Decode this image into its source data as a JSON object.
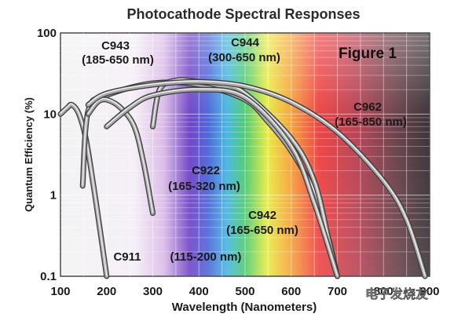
{
  "chart_data": {
    "type": "line",
    "title": "Photocathode Spectral Responses",
    "figure_label": "Figure 1",
    "xlabel": "Wavelength (Nanometers)",
    "ylabel": "Quantum Efficiency (%)",
    "xlim": [
      100,
      900
    ],
    "ylim": [
      0.1,
      100
    ],
    "yscale": "log",
    "grid": true,
    "x_ticks": [
      "100",
      "200",
      "300",
      "400",
      "500",
      "600",
      "700",
      "800",
      "900"
    ],
    "y_ticks": [
      "0.1",
      "1",
      "10",
      "100"
    ],
    "series": [
      {
        "name": "C911",
        "range": "(115-200 nm)",
        "x": [
          100,
          115,
          125,
          140,
          155,
          170,
          185,
          200
        ],
        "y": [
          10,
          12,
          13,
          10,
          5,
          1.5,
          0.4,
          0.1
        ]
      },
      {
        "name": "C943",
        "range": "(185-650 nm)",
        "x": [
          148,
          160,
          200,
          300,
          400,
          500,
          550,
          600,
          650,
          680,
          700
        ],
        "y": [
          1.3,
          11,
          17,
          24,
          23,
          15,
          8,
          3.5,
          1.1,
          0.3,
          0.1
        ]
      },
      {
        "name": "C922",
        "range": "(165-320 nm)",
        "x": [
          160,
          180,
          200,
          230,
          260,
          280,
          300
        ],
        "y": [
          10,
          14,
          15,
          12,
          7,
          2.5,
          0.6
        ]
      },
      {
        "name": "C944",
        "range": "(300-650 nm)",
        "x": [
          300,
          315,
          350,
          400,
          450,
          500,
          600,
          650,
          680,
          700
        ],
        "y": [
          7,
          20,
          26,
          25,
          22,
          18,
          5,
          1.5,
          0.3,
          0.1
        ]
      },
      {
        "name": "C942",
        "range": "(165-650 nm)",
        "x": [
          200,
          250,
          300,
          400,
          500,
          600,
          650,
          700
        ],
        "y": [
          7,
          12,
          17,
          20,
          16,
          4,
          0.8,
          0.1
        ]
      },
      {
        "name": "C962",
        "range": "(165-850 nm)",
        "x": [
          160,
          200,
          300,
          400,
          500,
          600,
          700,
          800,
          850,
          890
        ],
        "y": [
          13,
          18,
          23,
          25,
          22,
          14,
          6,
          1.5,
          0.5,
          0.1
        ]
      }
    ],
    "watermark": "电子发烧友"
  }
}
